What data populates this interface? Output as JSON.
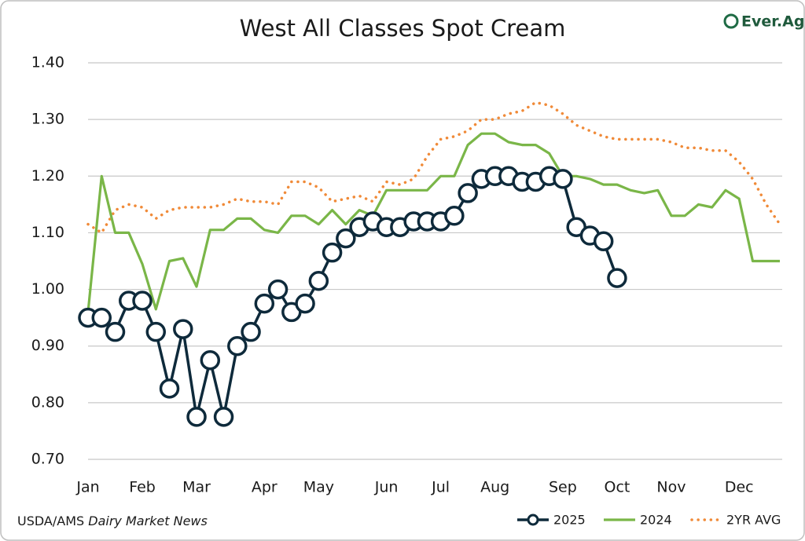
{
  "chart_data": {
    "type": "line",
    "title": "West All Classes Spot Cream",
    "logo": "Ever.Ag",
    "source": {
      "agency": "USDA/AMS",
      "publication": "Dairy Market News"
    },
    "categories": [
      "Jan",
      null,
      null,
      null,
      "Feb",
      null,
      null,
      null,
      "Mar",
      null,
      null,
      null,
      null,
      "Apr",
      null,
      null,
      null,
      "May",
      null,
      null,
      null,
      null,
      "Jun",
      null,
      null,
      null,
      "Jul",
      null,
      null,
      null,
      "Aug",
      null,
      null,
      null,
      null,
      "Sep",
      null,
      null,
      null,
      "Oct",
      null,
      null,
      null,
      "Nov",
      null,
      null,
      null,
      null,
      "Dec",
      null,
      null,
      null
    ],
    "ylim": [
      0.7,
      1.4
    ],
    "yticks": [
      {
        "value": 0.7,
        "label": "0.70"
      },
      {
        "value": 0.8,
        "label": "0.80"
      },
      {
        "value": 0.9,
        "label": "0.90"
      },
      {
        "value": 1.0,
        "label": "1.00"
      },
      {
        "value": 1.1,
        "label": "1.10"
      },
      {
        "value": 1.2,
        "label": "1.20"
      },
      {
        "value": 1.3,
        "label": "1.30"
      },
      {
        "value": 1.4,
        "label": "1.40"
      }
    ],
    "grid": true,
    "legend": "bottom-right",
    "series": [
      {
        "name": "2025",
        "color": "#0e2a3b",
        "style": "marker",
        "values": [
          0.95,
          0.95,
          0.925,
          0.98,
          0.98,
          0.925,
          0.825,
          0.93,
          0.775,
          0.875,
          0.775,
          0.9,
          0.925,
          0.975,
          1.0,
          0.96,
          0.975,
          1.015,
          1.065,
          1.09,
          1.11,
          1.12,
          1.11,
          1.11,
          1.12,
          1.12,
          1.12,
          1.13,
          1.17,
          1.195,
          1.2,
          1.2,
          1.19,
          1.19,
          1.2,
          1.195,
          1.11,
          1.095,
          1.085,
          1.02,
          null,
          null,
          null,
          null,
          null,
          null,
          null,
          null,
          null,
          null,
          null,
          null
        ]
      },
      {
        "name": "2024",
        "color": "#7ab648",
        "style": "solid",
        "values": [
          0.96,
          1.2,
          1.1,
          1.1,
          1.045,
          0.965,
          1.05,
          1.055,
          1.005,
          1.105,
          1.105,
          1.125,
          1.125,
          1.105,
          1.1,
          1.13,
          1.13,
          1.115,
          1.14,
          1.115,
          1.14,
          1.13,
          1.175,
          1.175,
          1.175,
          1.175,
          1.2,
          1.2,
          1.255,
          1.275,
          1.275,
          1.26,
          1.255,
          1.255,
          1.24,
          1.2,
          1.2,
          1.195,
          1.185,
          1.185,
          1.175,
          1.17,
          1.175,
          1.13,
          1.13,
          1.15,
          1.145,
          1.175,
          1.16,
          1.05,
          1.05,
          1.05
        ]
      },
      {
        "name": "2YR AVG",
        "color": "#f08a38",
        "style": "dotted",
        "values": [
          1.115,
          1.1,
          1.14,
          1.15,
          1.145,
          1.125,
          1.14,
          1.145,
          1.145,
          1.145,
          1.15,
          1.16,
          1.155,
          1.155,
          1.15,
          1.19,
          1.19,
          1.18,
          1.155,
          1.16,
          1.165,
          1.155,
          1.19,
          1.185,
          1.195,
          1.235,
          1.265,
          1.27,
          1.28,
          1.3,
          1.3,
          1.31,
          1.315,
          1.33,
          1.325,
          1.31,
          1.29,
          1.28,
          1.27,
          1.265,
          1.265,
          1.265,
          1.265,
          1.26,
          1.25,
          1.25,
          1.245,
          1.245,
          1.225,
          1.195,
          1.15,
          1.115
        ]
      }
    ]
  }
}
